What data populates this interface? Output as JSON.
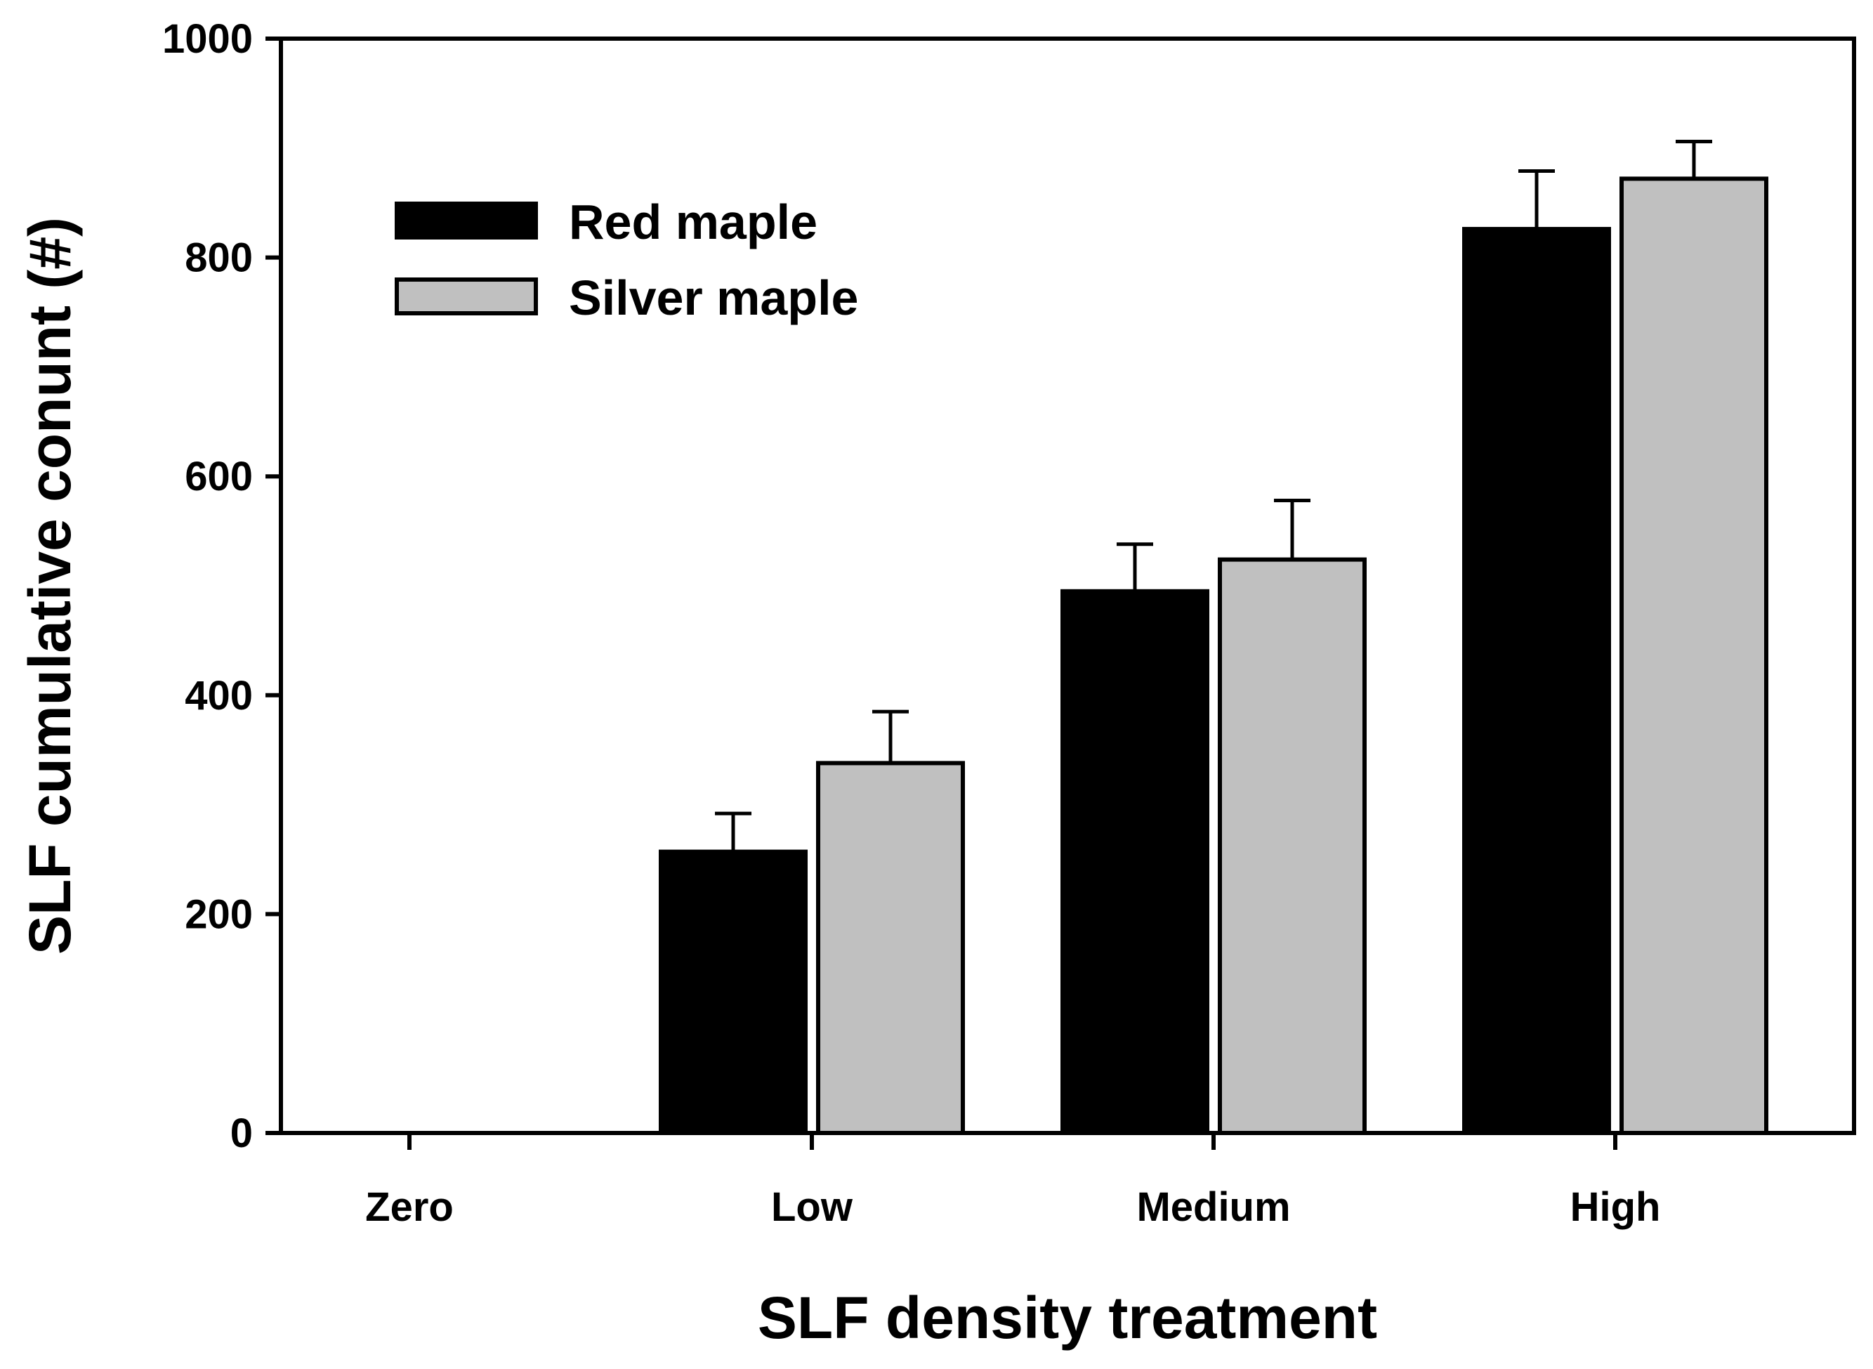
{
  "chart_data": {
    "type": "bar",
    "title": "",
    "xlabel": "SLF density treatment",
    "ylabel": "SLF cumulative conunt (#)",
    "categories": [
      "Zero",
      "Low",
      "Medium",
      "High"
    ],
    "ylim": [
      0,
      1000
    ],
    "yticks": [
      0,
      200,
      400,
      600,
      800,
      1000
    ],
    "grid": false,
    "legend_position": "top-left",
    "series": [
      {
        "name": "Red maple",
        "color": "#000000",
        "values": [
          0,
          257,
          495,
          826
        ],
        "errors": [
          0,
          35,
          43,
          53
        ]
      },
      {
        "name": "Silver maple",
        "color": "#c0c0c0",
        "values": [
          0,
          338,
          524,
          872
        ],
        "errors": [
          0,
          47,
          54,
          34
        ]
      }
    ]
  }
}
